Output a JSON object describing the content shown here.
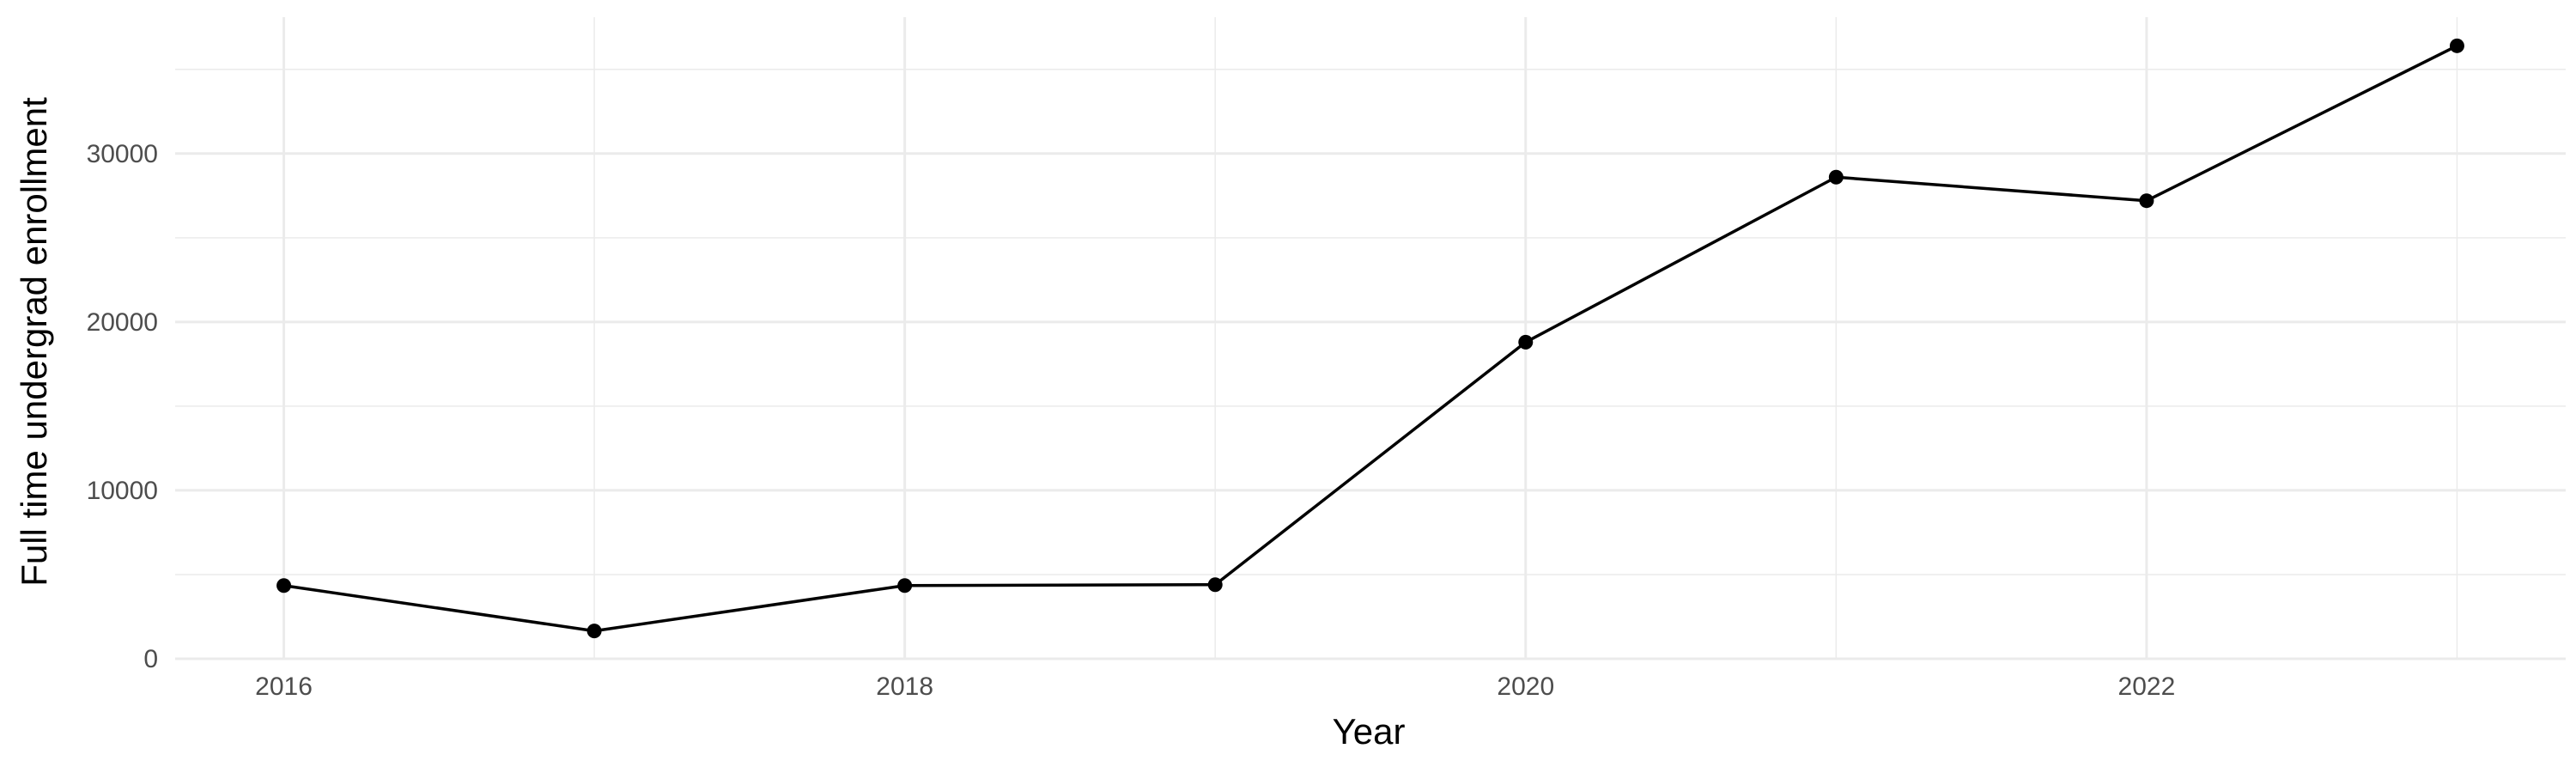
{
  "chart_data": {
    "type": "line",
    "title": "",
    "xlabel": "Year",
    "ylabel": "Full time undergrad enrollment",
    "x": [
      2016,
      2017,
      2018,
      2019,
      2020,
      2021,
      2022,
      2023
    ],
    "series": [
      {
        "values": [
          4350,
          1650,
          4350,
          4400,
          18800,
          28600,
          27200,
          36400
        ]
      }
    ],
    "xlim": [
      2015.65,
      2023.35
    ],
    "ylim": [
      0,
      38100
    ],
    "x_ticks": [
      2016,
      2018,
      2020,
      2022
    ],
    "x_tick_labels": [
      "2016",
      "2018",
      "2020",
      "2022"
    ],
    "y_ticks": [
      0,
      10000,
      20000,
      30000
    ],
    "y_tick_labels": [
      "0",
      "10000",
      "20000",
      "30000"
    ],
    "grid": true,
    "legend": "none",
    "colors": {
      "line": "#000000",
      "point": "#000000",
      "grid": "#ebebeb",
      "background": "#ffffff"
    }
  }
}
